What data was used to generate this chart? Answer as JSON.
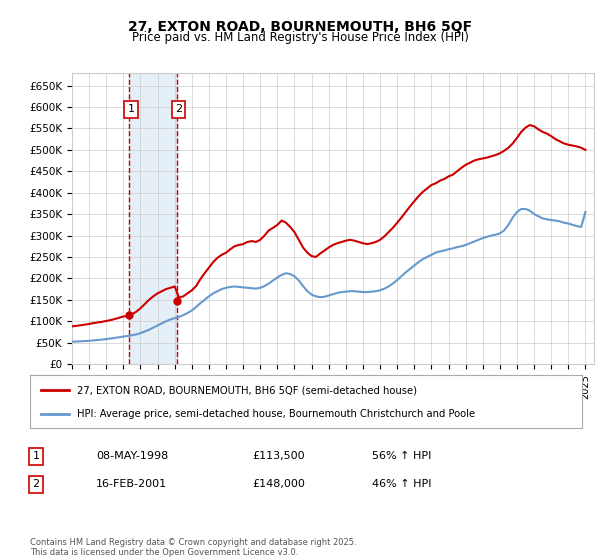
{
  "title": "27, EXTON ROAD, BOURNEMOUTH, BH6 5QF",
  "subtitle": "Price paid vs. HM Land Registry's House Price Index (HPI)",
  "xlim": [
    1995.0,
    2025.5
  ],
  "ylim": [
    0,
    680000
  ],
  "yticks": [
    0,
    50000,
    100000,
    150000,
    200000,
    250000,
    300000,
    350000,
    400000,
    450000,
    500000,
    550000,
    600000,
    650000
  ],
  "ytick_labels": [
    "£0",
    "£50K",
    "£100K",
    "£150K",
    "£200K",
    "£250K",
    "£300K",
    "£350K",
    "£400K",
    "£450K",
    "£500K",
    "£550K",
    "£600K",
    "£650K"
  ],
  "xticks": [
    1995,
    1996,
    1997,
    1998,
    1999,
    2000,
    2001,
    2002,
    2003,
    2004,
    2005,
    2006,
    2007,
    2008,
    2009,
    2010,
    2011,
    2012,
    2013,
    2014,
    2015,
    2016,
    2017,
    2018,
    2019,
    2020,
    2021,
    2022,
    2023,
    2024,
    2025
  ],
  "sale1_x": 1998.354,
  "sale1_y": 113500,
  "sale2_x": 2001.124,
  "sale2_y": 148000,
  "sale1_label": "1",
  "sale2_label": "2",
  "sale1_date": "08-MAY-1998",
  "sale1_price": "£113,500",
  "sale1_hpi": "56% ↑ HPI",
  "sale2_date": "16-FEB-2001",
  "sale2_price": "£148,000",
  "sale2_hpi": "46% ↑ HPI",
  "red_line_color": "#cc0000",
  "blue_line_color": "#6699cc",
  "grid_color": "#cccccc",
  "background_color": "#ffffff",
  "shaded_color": "#cce0f0",
  "legend_line1": "27, EXTON ROAD, BOURNEMOUTH, BH6 5QF (semi-detached house)",
  "legend_line2": "HPI: Average price, semi-detached house, Bournemouth Christchurch and Poole",
  "footnote": "Contains HM Land Registry data © Crown copyright and database right 2025.\nThis data is licensed under the Open Government Licence v3.0.",
  "shared_x": [
    1995.0,
    1995.25,
    1995.5,
    1995.75,
    1996.0,
    1996.25,
    1996.5,
    1996.75,
    1997.0,
    1997.25,
    1997.5,
    1997.75,
    1998.0,
    1998.25,
    1998.5,
    1998.75,
    1999.0,
    1999.25,
    1999.5,
    1999.75,
    2000.0,
    2000.25,
    2000.5,
    2000.75,
    2001.0,
    2001.25,
    2001.5,
    2001.75,
    2002.0,
    2002.25,
    2002.5,
    2002.75,
    2003.0,
    2003.25,
    2003.5,
    2003.75,
    2004.0,
    2004.25,
    2004.5,
    2004.75,
    2005.0,
    2005.25,
    2005.5,
    2005.75,
    2006.0,
    2006.25,
    2006.5,
    2006.75,
    2007.0,
    2007.25,
    2007.5,
    2007.75,
    2008.0,
    2008.25,
    2008.5,
    2008.75,
    2009.0,
    2009.25,
    2009.5,
    2009.75,
    2010.0,
    2010.25,
    2010.5,
    2010.75,
    2011.0,
    2011.25,
    2011.5,
    2011.75,
    2012.0,
    2012.25,
    2012.5,
    2012.75,
    2013.0,
    2013.25,
    2013.5,
    2013.75,
    2014.0,
    2014.25,
    2014.5,
    2014.75,
    2015.0,
    2015.25,
    2015.5,
    2015.75,
    2016.0,
    2016.25,
    2016.5,
    2016.75,
    2017.0,
    2017.25,
    2017.5,
    2017.75,
    2018.0,
    2018.25,
    2018.5,
    2018.75,
    2019.0,
    2019.25,
    2019.5,
    2019.75,
    2020.0,
    2020.25,
    2020.5,
    2020.75,
    2021.0,
    2021.25,
    2021.5,
    2021.75,
    2022.0,
    2022.25,
    2022.5,
    2022.75,
    2023.0,
    2023.25,
    2023.5,
    2023.75,
    2024.0,
    2024.25,
    2024.5,
    2024.75,
    2025.0
  ],
  "red_data_y": [
    88000,
    89000,
    90500,
    92000,
    93500,
    95500,
    97000,
    98500,
    100500,
    102500,
    105000,
    108000,
    111000,
    112000,
    116000,
    122000,
    130000,
    140000,
    150000,
    158000,
    165000,
    170000,
    175000,
    178000,
    181000,
    155000,
    158000,
    165000,
    172000,
    182000,
    198000,
    212000,
    225000,
    238000,
    248000,
    255000,
    260000,
    268000,
    275000,
    278000,
    280000,
    285000,
    287000,
    285000,
    290000,
    300000,
    312000,
    318000,
    325000,
    335000,
    330000,
    320000,
    308000,
    290000,
    272000,
    260000,
    252000,
    250000,
    258000,
    265000,
    272000,
    278000,
    282000,
    285000,
    288000,
    290000,
    288000,
    285000,
    282000,
    280000,
    282000,
    285000,
    290000,
    298000,
    308000,
    318000,
    330000,
    342000,
    355000,
    368000,
    380000,
    392000,
    402000,
    410000,
    418000,
    422000,
    428000,
    432000,
    438000,
    442000,
    450000,
    458000,
    465000,
    470000,
    475000,
    478000,
    480000,
    482000,
    485000,
    488000,
    492000,
    498000,
    505000,
    515000,
    528000,
    542000,
    552000,
    558000,
    555000,
    548000,
    542000,
    538000,
    532000,
    525000,
    520000,
    515000,
    512000,
    510000,
    508000,
    505000,
    500000
  ],
  "blue_data_y": [
    52000,
    52500,
    53000,
    53500,
    54200,
    55000,
    56000,
    57000,
    58200,
    59500,
    61000,
    62500,
    64000,
    65500,
    67000,
    69000,
    72000,
    76000,
    80000,
    85000,
    90000,
    95000,
    100000,
    104000,
    107000,
    110000,
    114000,
    119000,
    125000,
    133000,
    142000,
    150000,
    158000,
    165000,
    170000,
    175000,
    178000,
    180000,
    181000,
    180000,
    179000,
    178000,
    177000,
    176000,
    178000,
    182000,
    188000,
    195000,
    202000,
    208000,
    212000,
    210000,
    205000,
    195000,
    182000,
    170000,
    162000,
    158000,
    156000,
    157000,
    160000,
    163000,
    166000,
    168000,
    169000,
    170000,
    170000,
    169000,
    168000,
    168000,
    169000,
    170000,
    172000,
    176000,
    181000,
    188000,
    196000,
    205000,
    214000,
    222000,
    230000,
    238000,
    245000,
    250000,
    255000,
    260000,
    263000,
    265000,
    268000,
    270000,
    273000,
    275000,
    278000,
    282000,
    286000,
    290000,
    294000,
    297000,
    300000,
    302000,
    305000,
    312000,
    325000,
    342000,
    355000,
    362000,
    362000,
    358000,
    350000,
    345000,
    340000,
    338000,
    336000,
    335000,
    333000,
    330000,
    328000,
    325000,
    322000,
    320000,
    355000
  ]
}
